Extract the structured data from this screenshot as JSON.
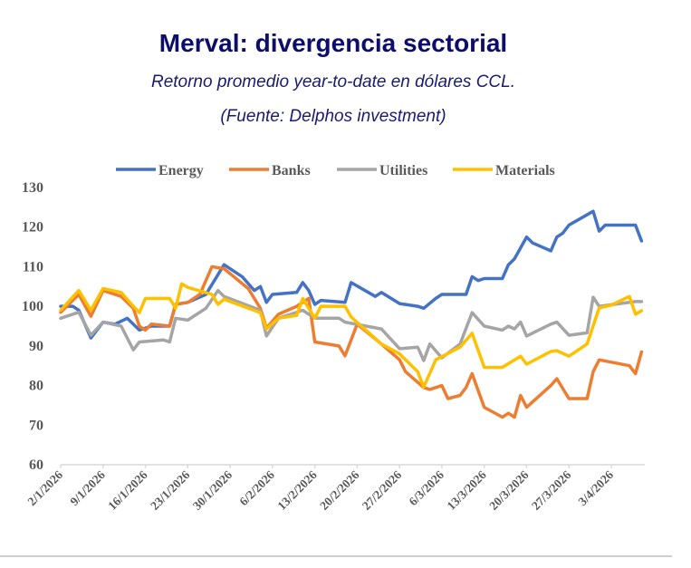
{
  "chart_data": {
    "type": "line",
    "title": "Merval: divergencia sectorial",
    "subtitle": "Retorno promedio year-to-date en dólares CCL.",
    "source": "(Fuente: Delphos investment)",
    "xlabel": "",
    "ylabel": "",
    "ylim": [
      60,
      130
    ],
    "yticks": [
      "130",
      "120",
      "110",
      "100",
      "90",
      "80",
      "70",
      "60"
    ],
    "xticks": [
      "2/1/2026",
      "9/1/2026",
      "16/1/2026",
      "23/1/2026",
      "30/1/2026",
      "6/2/2026",
      "13/2/2026",
      "20/2/2026",
      "27/2/2026",
      "6/3/2026",
      "13/3/2026",
      "20/3/2026",
      "27/3/2026",
      "3/4/2026"
    ],
    "grid": false,
    "legend": "top",
    "series": [
      {
        "name": "Energy",
        "color": "#4472c4",
        "points": [
          [
            "2/1/2026",
            100
          ],
          [
            "4/1/2026",
            100
          ],
          [
            "5/1/2026",
            99
          ],
          [
            "7/1/2026",
            92
          ],
          [
            "9/1/2026",
            96
          ],
          [
            "11/1/2026",
            95.5
          ],
          [
            "13/1/2026",
            97
          ],
          [
            "15/1/2026",
            94
          ],
          [
            "17/1/2026",
            95
          ],
          [
            "20/1/2026",
            95
          ],
          [
            "21/1/2026",
            100.5
          ],
          [
            "23/1/2026",
            101
          ],
          [
            "26/1/2026",
            103
          ],
          [
            "29/1/2026",
            110.5
          ],
          [
            "1/2/2026",
            107.5
          ],
          [
            "3/2/2026",
            104
          ],
          [
            "4/2/2026",
            105
          ],
          [
            "5/2/2026",
            101
          ],
          [
            "6/2/2026",
            103
          ],
          [
            "10/2/2026",
            103.5
          ],
          [
            "11/2/2026",
            106
          ],
          [
            "12/2/2026",
            104
          ],
          [
            "13/2/2026",
            100.5
          ],
          [
            "14/2/2026",
            101.5
          ],
          [
            "18/2/2026",
            101
          ],
          [
            "19/2/2026",
            106
          ],
          [
            "23/2/2026",
            102.5
          ],
          [
            "24/2/2026",
            103.5
          ],
          [
            "27/2/2026",
            100.7
          ],
          [
            "2/3/2026",
            100
          ],
          [
            "3/3/2026",
            99.5
          ],
          [
            "5/3/2026",
            102
          ],
          [
            "6/3/2026",
            103
          ],
          [
            "10/3/2026",
            103
          ],
          [
            "11/3/2026",
            107.5
          ],
          [
            "12/3/2026",
            106.5
          ],
          [
            "13/3/2026",
            107
          ],
          [
            "16/3/2026",
            107
          ],
          [
            "17/3/2026",
            110.5
          ],
          [
            "18/3/2026",
            112
          ],
          [
            "20/3/2026",
            117.5
          ],
          [
            "21/3/2026",
            116
          ],
          [
            "24/3/2026",
            114
          ],
          [
            "25/3/2026",
            117.5
          ],
          [
            "26/3/2026",
            118.5
          ],
          [
            "27/3/2026",
            120.5
          ],
          [
            "31/3/2026",
            124
          ],
          [
            "1/4/2026",
            119
          ],
          [
            "2/4/2026",
            120.5
          ],
          [
            "7/4/2026",
            120.5
          ],
          [
            "8/4/2026",
            116.5
          ]
        ]
      },
      {
        "name": "Banks",
        "color": "#ed7d31",
        "points": [
          [
            "2/1/2026",
            98.5
          ],
          [
            "5/1/2026",
            103
          ],
          [
            "7/1/2026",
            97.5
          ],
          [
            "9/1/2026",
            104
          ],
          [
            "12/1/2026",
            102.5
          ],
          [
            "14/1/2026",
            99.5
          ],
          [
            "15/1/2026",
            95
          ],
          [
            "16/1/2026",
            94
          ],
          [
            "17/1/2026",
            95.5
          ],
          [
            "20/1/2026",
            95
          ],
          [
            "21/1/2026",
            100.5
          ],
          [
            "23/1/2026",
            101
          ],
          [
            "25/1/2026",
            103
          ],
          [
            "27/1/2026",
            110
          ],
          [
            "29/1/2026",
            109.5
          ],
          [
            "2/2/2026",
            104.5
          ],
          [
            "4/2/2026",
            99.5
          ],
          [
            "5/2/2026",
            94.5
          ],
          [
            "7/2/2026",
            98
          ],
          [
            "10/2/2026",
            100
          ],
          [
            "12/2/2026",
            102
          ],
          [
            "13/2/2026",
            91
          ],
          [
            "17/2/2026",
            90
          ],
          [
            "18/2/2026",
            87.5
          ],
          [
            "20/2/2026",
            95.5
          ],
          [
            "24/2/2026",
            90.5
          ],
          [
            "27/2/2026",
            86.5
          ],
          [
            "28/2/2026",
            83.5
          ],
          [
            "3/3/2026",
            79.5
          ],
          [
            "4/3/2026",
            79
          ],
          [
            "6/3/2026",
            80
          ],
          [
            "7/3/2026",
            76.7
          ],
          [
            "9/3/2026",
            77.5
          ],
          [
            "10/3/2026",
            79.5
          ],
          [
            "11/3/2026",
            83
          ],
          [
            "13/3/2026",
            74.5
          ],
          [
            "16/3/2026",
            72
          ],
          [
            "17/3/2026",
            73
          ],
          [
            "18/3/2026",
            72
          ],
          [
            "19/3/2026",
            77.5
          ],
          [
            "20/3/2026",
            74.5
          ],
          [
            "24/3/2026",
            80
          ],
          [
            "25/3/2026",
            81.7
          ],
          [
            "27/3/2026",
            76.7
          ],
          [
            "30/3/2026",
            76.7
          ],
          [
            "31/3/2026",
            83.5
          ],
          [
            "1/4/2026",
            86.5
          ],
          [
            "6/4/2026",
            85
          ],
          [
            "7/4/2026",
            83
          ],
          [
            "8/4/2026",
            88.5
          ]
        ]
      },
      {
        "name": "Utilities",
        "color": "#a5a5a5",
        "points": [
          [
            "2/1/2026",
            97
          ],
          [
            "5/1/2026",
            98.5
          ],
          [
            "7/1/2026",
            92.7
          ],
          [
            "9/1/2026",
            96
          ],
          [
            "12/1/2026",
            95
          ],
          [
            "14/1/2026",
            89
          ],
          [
            "15/1/2026",
            91
          ],
          [
            "19/1/2026",
            91.5
          ],
          [
            "20/1/2026",
            91
          ],
          [
            "21/1/2026",
            97
          ],
          [
            "23/1/2026",
            96.5
          ],
          [
            "26/1/2026",
            99.5
          ],
          [
            "28/1/2026",
            104
          ],
          [
            "29/1/2026",
            102.5
          ],
          [
            "4/2/2026",
            99
          ],
          [
            "5/2/2026",
            92.5
          ],
          [
            "7/2/2026",
            97
          ],
          [
            "11/2/2026",
            99
          ],
          [
            "13/2/2026",
            97
          ],
          [
            "17/2/2026",
            97
          ],
          [
            "18/2/2026",
            96
          ],
          [
            "24/2/2026",
            94.3
          ],
          [
            "27/2/2026",
            89.3
          ],
          [
            "2/3/2026",
            89.7
          ],
          [
            "3/3/2026",
            86.3
          ],
          [
            "4/3/2026",
            90.5
          ],
          [
            "6/3/2026",
            87
          ],
          [
            "9/3/2026",
            90.5
          ],
          [
            "11/3/2026",
            98.4
          ],
          [
            "13/3/2026",
            95
          ],
          [
            "16/3/2026",
            94
          ],
          [
            "17/3/2026",
            95
          ],
          [
            "18/3/2026",
            94.3
          ],
          [
            "19/3/2026",
            96
          ],
          [
            "20/3/2026",
            92.5
          ],
          [
            "24/3/2026",
            95.5
          ],
          [
            "25/3/2026",
            96
          ],
          [
            "27/3/2026",
            92.7
          ],
          [
            "30/3/2026",
            93.3
          ],
          [
            "31/3/2026",
            102.3
          ],
          [
            "1/4/2026",
            100
          ],
          [
            "7/4/2026",
            101.2
          ],
          [
            "8/4/2026",
            101.2
          ]
        ]
      },
      {
        "name": "Materials",
        "color": "#ffc000",
        "points": [
          [
            "2/1/2026",
            99
          ],
          [
            "5/1/2026",
            104
          ],
          [
            "7/1/2026",
            99
          ],
          [
            "9/1/2026",
            104.5
          ],
          [
            "12/1/2026",
            103.5
          ],
          [
            "14/1/2026",
            100
          ],
          [
            "15/1/2026",
            98.4
          ],
          [
            "16/1/2026",
            102
          ],
          [
            "20/1/2026",
            102
          ],
          [
            "21/1/2026",
            99.5
          ],
          [
            "22/1/2026",
            105.7
          ],
          [
            "23/1/2026",
            104.8
          ],
          [
            "27/1/2026",
            103
          ],
          [
            "28/1/2026",
            100.5
          ],
          [
            "29/1/2026",
            101.8
          ],
          [
            "4/2/2026",
            98.4
          ],
          [
            "5/2/2026",
            94.3
          ],
          [
            "7/2/2026",
            97
          ],
          [
            "10/2/2026",
            97.7
          ],
          [
            "11/2/2026",
            102
          ],
          [
            "13/2/2026",
            97
          ],
          [
            "14/2/2026",
            100
          ],
          [
            "18/2/2026",
            100
          ],
          [
            "19/2/2026",
            97.3
          ],
          [
            "24/2/2026",
            90.5
          ],
          [
            "27/2/2026",
            88
          ],
          [
            "2/3/2026",
            83.5
          ],
          [
            "3/3/2026",
            79.6
          ],
          [
            "5/3/2026",
            86.5
          ],
          [
            "9/3/2026",
            89.7
          ],
          [
            "11/3/2026",
            93.2
          ],
          [
            "13/3/2026",
            84.6
          ],
          [
            "16/3/2026",
            84.6
          ],
          [
            "19/3/2026",
            87.4
          ],
          [
            "20/3/2026",
            85.4
          ],
          [
            "24/3/2026",
            88.6
          ],
          [
            "25/3/2026",
            88.8
          ],
          [
            "27/3/2026",
            87.4
          ],
          [
            "30/3/2026",
            90.5
          ],
          [
            "1/4/2026",
            99.6
          ],
          [
            "3/4/2026",
            100.3
          ],
          [
            "6/4/2026",
            102.5
          ],
          [
            "7/4/2026",
            98
          ],
          [
            "8/4/2026",
            98.9
          ]
        ]
      }
    ]
  }
}
